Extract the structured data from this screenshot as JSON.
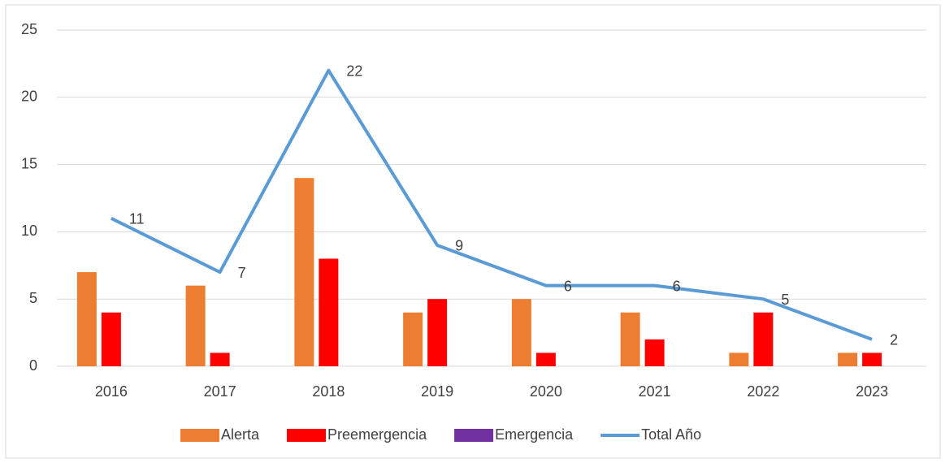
{
  "chart_data": {
    "type": "bar",
    "categories": [
      "2016",
      "2017",
      "2018",
      "2019",
      "2020",
      "2021",
      "2022",
      "2023"
    ],
    "series": [
      {
        "name": "Alerta",
        "color": "#ED7D31",
        "values": [
          7,
          6,
          14,
          4,
          5,
          4,
          1,
          1
        ]
      },
      {
        "name": "Preemergencia",
        "color": "#FF0000",
        "values": [
          4,
          1,
          8,
          5,
          1,
          2,
          4,
          1
        ]
      },
      {
        "name": "Emergencia",
        "color": "#7030A0",
        "values": [
          0,
          0,
          0,
          0,
          0,
          0,
          0,
          0
        ]
      },
      {
        "name": "Total Año",
        "color": "#5B9BD5",
        "type": "line",
        "values": [
          11,
          7,
          22,
          9,
          6,
          6,
          5,
          2
        ]
      }
    ],
    "ylim": [
      0,
      25
    ],
    "yticks": [
      0,
      5,
      10,
      15,
      20,
      25
    ],
    "grid": true,
    "legend": "bottom"
  }
}
